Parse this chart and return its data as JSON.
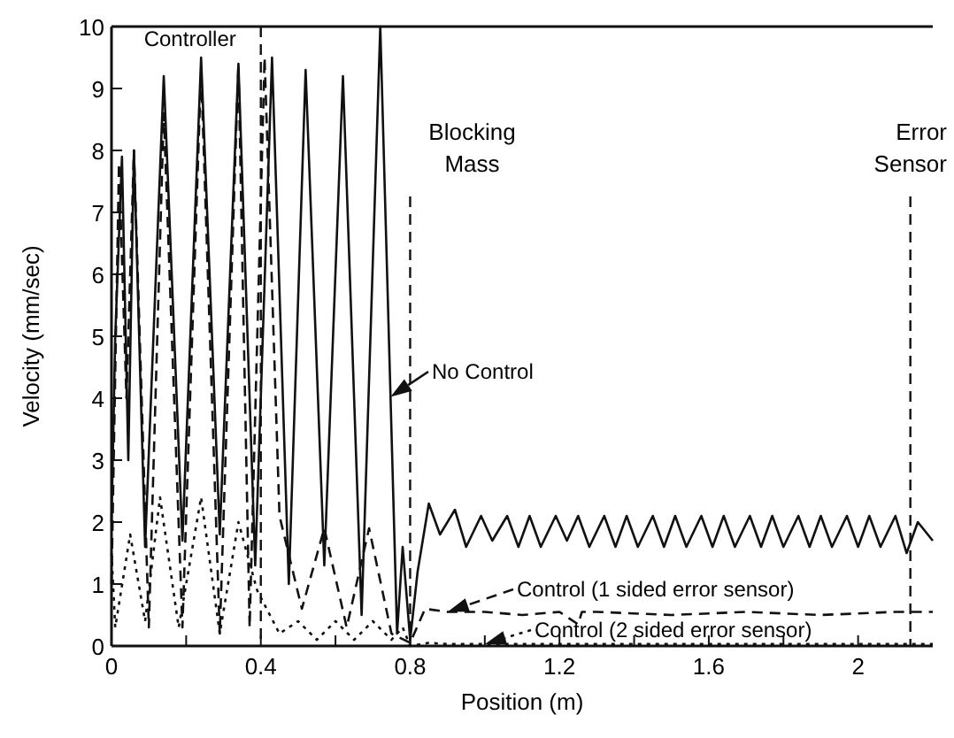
{
  "chart_data": {
    "type": "line",
    "xlabel": "Position (m)",
    "ylabel": "Velocity (mm/sec)",
    "xlim": [
      0,
      2.2
    ],
    "ylim": [
      0,
      10
    ],
    "xticks": [
      0,
      {
        "value": 0.2,
        "label": null
      },
      0.4,
      {
        "value": 0.6,
        "label": null
      },
      0.8,
      {
        "value": 1.0,
        "label": null
      },
      1.2,
      {
        "value": 1.4,
        "label": null
      },
      1.6,
      {
        "value": 1.8,
        "label": null
      },
      2
    ],
    "yticks": [
      0,
      1,
      2,
      3,
      4,
      5,
      6,
      7,
      8,
      9,
      10
    ],
    "grid": false,
    "legend": "right",
    "series": [
      {
        "name": "No Control",
        "color": "#111111",
        "line_style": "solid",
        "x": [
          0,
          0.01,
          0.028,
          0.045,
          0.06,
          0.09,
          0.14,
          0.19,
          0.24,
          0.29,
          0.34,
          0.385,
          0.43,
          0.475,
          0.52,
          0.57,
          0.62,
          0.67,
          0.72,
          0.765,
          0.78,
          0.8,
          0.82,
          0.85,
          0.88,
          0.92,
          0.95,
          0.99,
          1.02,
          1.06,
          1.09,
          1.12,
          1.15,
          1.19,
          1.22,
          1.25,
          1.28,
          1.32,
          1.35,
          1.38,
          1.41,
          1.45,
          1.48,
          1.51,
          1.54,
          1.58,
          1.61,
          1.64,
          1.67,
          1.71,
          1.74,
          1.77,
          1.8,
          1.84,
          1.87,
          1.9,
          1.93,
          1.97,
          2.0,
          2.03,
          2.06,
          2.1,
          2.13,
          2.16,
          2.2
        ],
        "values": [
          2,
          5,
          7.9,
          3,
          8.0,
          1.6,
          9.2,
          1.7,
          9.5,
          1.8,
          9.4,
          1.3,
          9.5,
          1.0,
          9.3,
          1.3,
          9.2,
          0.5,
          10,
          0.2,
          1.6,
          0.1,
          1.2,
          2.3,
          1.8,
          2.2,
          1.6,
          2.1,
          1.7,
          2.1,
          1.6,
          2.1,
          1.6,
          2.1,
          1.7,
          2.1,
          1.6,
          2.1,
          1.6,
          2.1,
          1.6,
          2.1,
          1.6,
          2.1,
          1.6,
          2.1,
          1.6,
          2.1,
          1.6,
          2.1,
          1.6,
          2.1,
          1.6,
          2.1,
          1.6,
          2.1,
          1.6,
          2.1,
          1.6,
          2.1,
          1.6,
          2.1,
          1.5,
          2.0,
          1.7
        ]
      },
      {
        "name": "Control (1 sided error sensor)",
        "color": "#111111",
        "line_style": "dashed",
        "x": [
          0,
          0.02,
          0.04,
          0.06,
          0.1,
          0.14,
          0.19,
          0.24,
          0.29,
          0.34,
          0.37,
          0.41,
          0.45,
          0.51,
          0.57,
          0.63,
          0.69,
          0.75,
          0.8,
          0.84,
          0.9,
          1.0,
          1.1,
          1.2,
          1.25,
          1.26,
          1.3,
          1.5,
          1.7,
          1.9,
          2.1,
          2.2
        ],
        "values": [
          1,
          7.8,
          4,
          8.0,
          0.3,
          8.6,
          0.3,
          9.3,
          0.2,
          9.4,
          0.3,
          9.5,
          2.1,
          0.6,
          1.9,
          0.3,
          1.9,
          0.2,
          0.05,
          0.6,
          0.55,
          0.55,
          0.5,
          0.55,
          0.35,
          0.55,
          0.55,
          0.5,
          0.55,
          0.5,
          0.55,
          0.55
        ]
      },
      {
        "name": "Control (2 sided error sensor)",
        "color": "#111111",
        "line_style": "dotted",
        "x": [
          0,
          0.01,
          0.05,
          0.09,
          0.13,
          0.18,
          0.24,
          0.29,
          0.34,
          0.39,
          0.45,
          0.5,
          0.55,
          0.6,
          0.65,
          0.7,
          0.75,
          0.78,
          0.8,
          0.85,
          0.9,
          1.0,
          1.2,
          1.4,
          1.6,
          1.8,
          2.0,
          2.2
        ],
        "values": [
          1.5,
          0.3,
          1.8,
          0.4,
          2.4,
          0.3,
          2.4,
          0.2,
          2.0,
          0.9,
          0.2,
          0.4,
          0.1,
          0.4,
          0.1,
          0.4,
          0.1,
          0.3,
          0.0,
          0.05,
          0.03,
          0.03,
          0.03,
          0.03,
          0.03,
          0.03,
          0.03,
          0.03
        ]
      }
    ],
    "ref_lines": [
      {
        "axis": "x",
        "value": 0.4,
        "label": "Controller",
        "line_style": "dashed"
      },
      {
        "axis": "x",
        "value": 0.8,
        "label": "Blocking\nMass",
        "line_style": "dashed"
      },
      {
        "axis": "x",
        "value": 2.14,
        "label": "Error\nSensor",
        "line_style": "dashed"
      }
    ]
  }
}
